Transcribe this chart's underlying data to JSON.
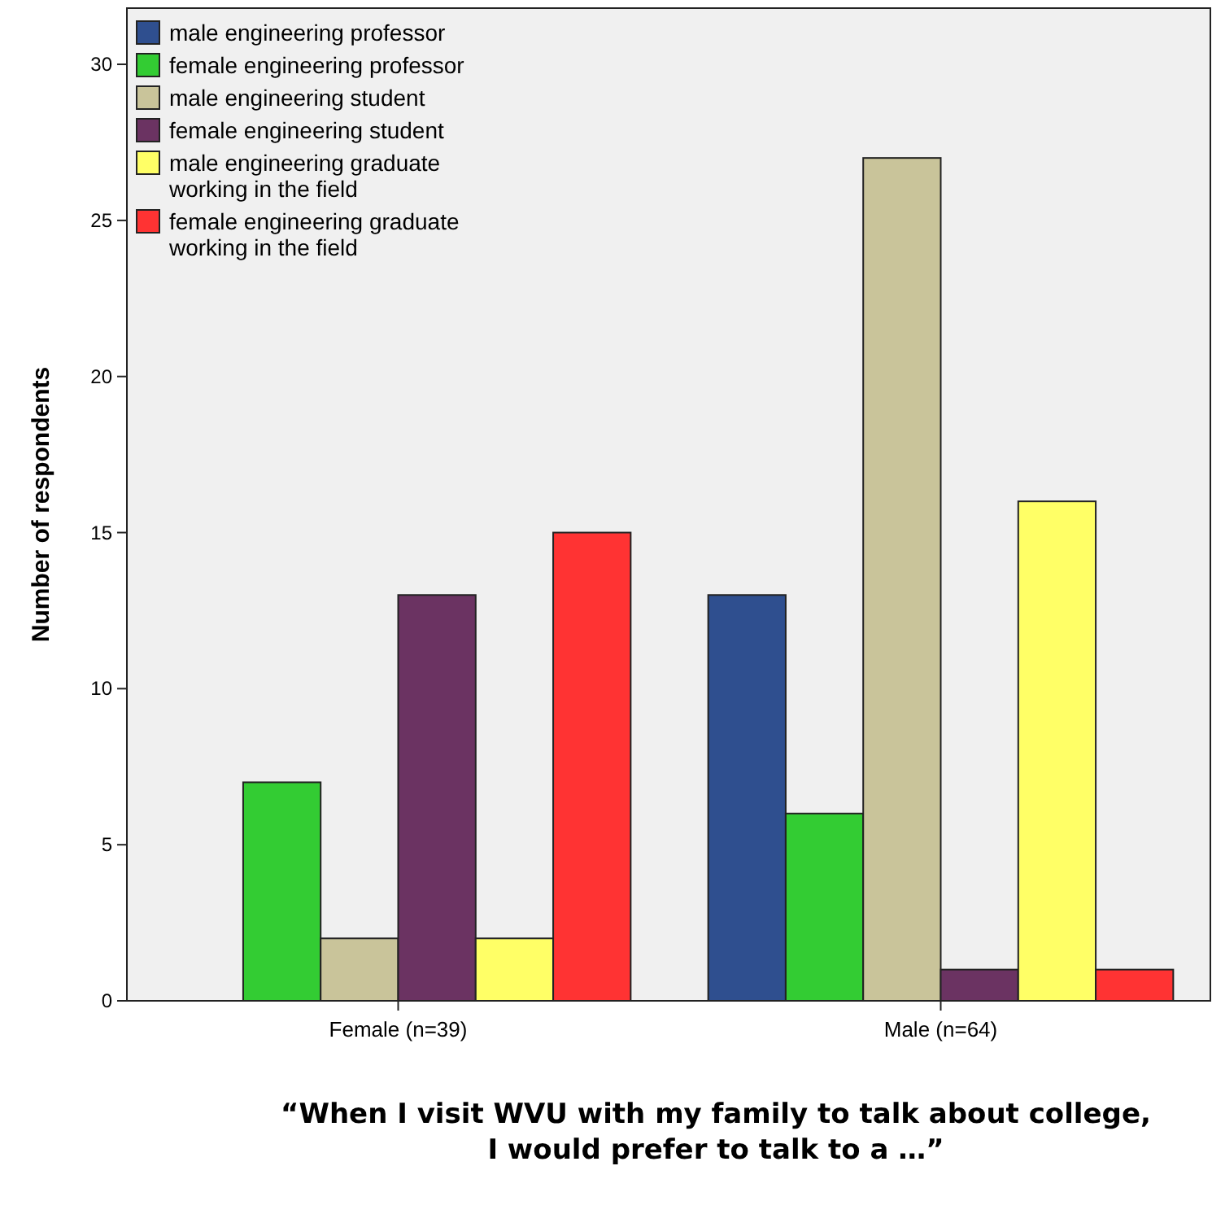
{
  "chart_data": {
    "type": "bar",
    "title": "“When I visit WVU with my family to talk about college,\nI would prefer to talk to a …”",
    "ylabel": "Number of respondents",
    "categories": [
      "Female (n=39)",
      "Male (n=64)"
    ],
    "series": [
      {
        "name": "male engineering professor",
        "color": "#2f4f8f",
        "values": [
          0,
          13
        ]
      },
      {
        "name": "female engineering professor",
        "color": "#33cc33",
        "values": [
          7,
          6
        ]
      },
      {
        "name": "male engineering student",
        "color": "#c9c49a",
        "values": [
          2,
          27
        ]
      },
      {
        "name": "female engineering student",
        "color": "#6b3362",
        "values": [
          13,
          1
        ]
      },
      {
        "name": "male engineering graduate working in the field",
        "color": "#ffff66",
        "values": [
          2,
          16
        ]
      },
      {
        "name": "female engineering graduate working in the field",
        "color": "#ff3333",
        "values": [
          15,
          1
        ]
      }
    ],
    "ylim": [
      0,
      31.8
    ],
    "yticks": [
      0,
      5,
      10,
      15,
      20,
      25,
      30
    ],
    "grid": false,
    "legend": "top left"
  }
}
